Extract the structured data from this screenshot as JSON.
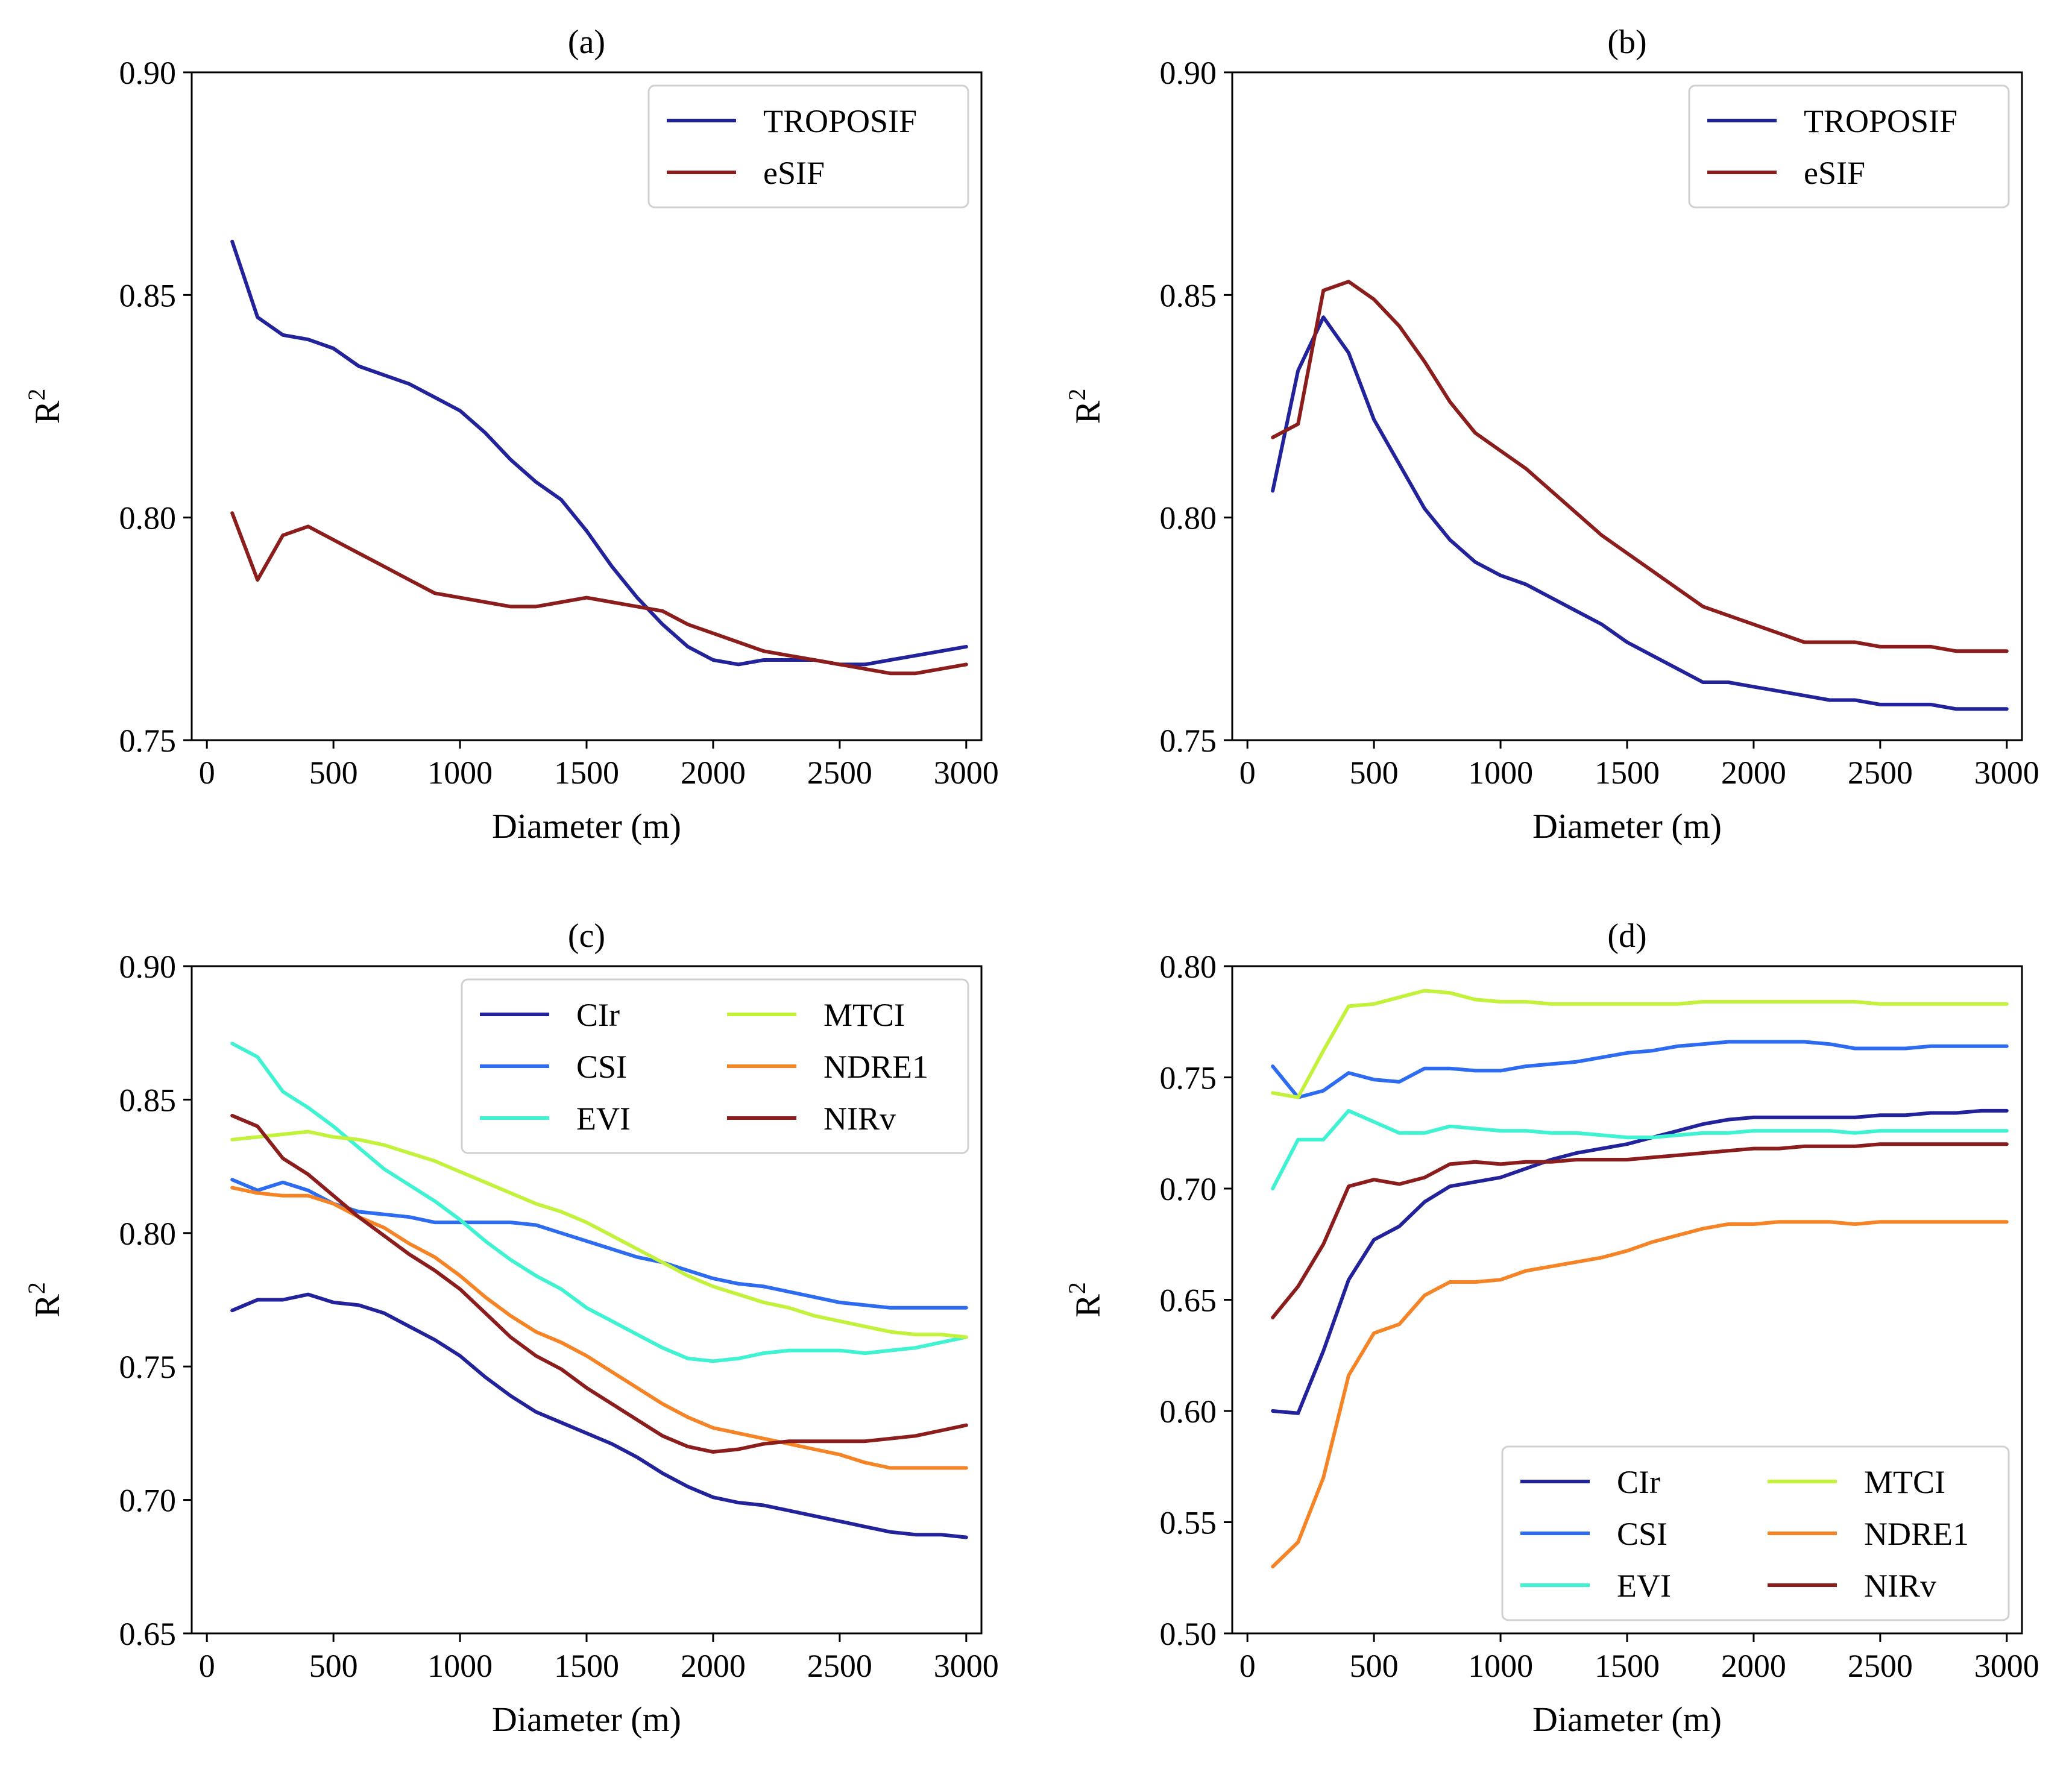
{
  "chart_data": [
    {
      "type": "line",
      "title": "(a)",
      "xlabel": "Diameter (m)",
      "ylabel": "R",
      "ylabel_sup": "2",
      "xlim": [
        -60,
        3060
      ],
      "ylim": [
        0.75,
        0.9
      ],
      "xticks": [
        0,
        500,
        1000,
        1500,
        2000,
        2500,
        3000
      ],
      "xtick_labels": [
        "0",
        "500",
        "1000",
        "1500",
        "2000",
        "2500",
        "3000"
      ],
      "yticks": [
        0.75,
        0.8,
        0.85,
        0.9
      ],
      "ytick_labels": [
        "0.75",
        "0.80",
        "0.85",
        "0.90"
      ],
      "legend": "top-right",
      "legend_cols": 1,
      "x": [
        100,
        200,
        300,
        400,
        500,
        600,
        700,
        800,
        900,
        1000,
        1100,
        1200,
        1300,
        1400,
        1500,
        1600,
        1700,
        1800,
        1900,
        2000,
        2100,
        2200,
        2300,
        2400,
        2500,
        2600,
        2700,
        2800,
        2900,
        3000
      ],
      "series": [
        {
          "name": "TROPOSIF",
          "color": "#22229a",
          "values": [
            0.862,
            0.845,
            0.841,
            0.84,
            0.838,
            0.834,
            0.832,
            0.83,
            0.827,
            0.824,
            0.819,
            0.813,
            0.808,
            0.804,
            0.797,
            0.789,
            0.782,
            0.776,
            0.771,
            0.768,
            0.767,
            0.768,
            0.768,
            0.768,
            0.767,
            0.767,
            0.768,
            0.769,
            0.77,
            0.771
          ]
        },
        {
          "name": "eSIF",
          "color": "#8b1d1d",
          "values": [
            0.801,
            0.786,
            0.796,
            0.798,
            0.795,
            0.792,
            0.789,
            0.786,
            0.783,
            0.782,
            0.781,
            0.78,
            0.78,
            0.781,
            0.782,
            0.781,
            0.78,
            0.779,
            0.776,
            0.774,
            0.772,
            0.77,
            0.769,
            0.768,
            0.767,
            0.766,
            0.765,
            0.765,
            0.766,
            0.767
          ]
        }
      ]
    },
    {
      "type": "line",
      "title": "(b)",
      "xlabel": "Diameter (m)",
      "ylabel": "R",
      "ylabel_sup": "2",
      "xlim": [
        -60,
        3060
      ],
      "ylim": [
        0.75,
        0.9
      ],
      "xticks": [
        0,
        500,
        1000,
        1500,
        2000,
        2500,
        3000
      ],
      "xtick_labels": [
        "0",
        "500",
        "1000",
        "1500",
        "2000",
        "2500",
        "3000"
      ],
      "yticks": [
        0.75,
        0.8,
        0.85,
        0.9
      ],
      "ytick_labels": [
        "0.75",
        "0.80",
        "0.85",
        "0.90"
      ],
      "legend": "top-right",
      "legend_cols": 1,
      "x": [
        100,
        200,
        300,
        400,
        500,
        600,
        700,
        800,
        900,
        1000,
        1100,
        1200,
        1300,
        1400,
        1500,
        1600,
        1700,
        1800,
        1900,
        2000,
        2100,
        2200,
        2300,
        2400,
        2500,
        2600,
        2700,
        2800,
        2900,
        3000
      ],
      "series": [
        {
          "name": "TROPOSIF",
          "color": "#22229a",
          "values": [
            0.806,
            0.833,
            0.845,
            0.837,
            0.822,
            0.812,
            0.802,
            0.795,
            0.79,
            0.787,
            0.785,
            0.782,
            0.779,
            0.776,
            0.772,
            0.769,
            0.766,
            0.763,
            0.763,
            0.762,
            0.761,
            0.76,
            0.759,
            0.759,
            0.758,
            0.758,
            0.758,
            0.757,
            0.757,
            0.757
          ]
        },
        {
          "name": "eSIF",
          "color": "#8b1d1d",
          "values": [
            0.818,
            0.821,
            0.851,
            0.853,
            0.849,
            0.843,
            0.835,
            0.826,
            0.819,
            0.815,
            0.811,
            0.806,
            0.801,
            0.796,
            0.792,
            0.788,
            0.784,
            0.78,
            0.778,
            0.776,
            0.774,
            0.772,
            0.772,
            0.772,
            0.771,
            0.771,
            0.771,
            0.77,
            0.77,
            0.77
          ]
        }
      ]
    },
    {
      "type": "line",
      "title": "(c)",
      "xlabel": "Diameter (m)",
      "ylabel": "R",
      "ylabel_sup": "2",
      "xlim": [
        -60,
        3060
      ],
      "ylim": [
        0.65,
        0.9
      ],
      "xticks": [
        0,
        500,
        1000,
        1500,
        2000,
        2500,
        3000
      ],
      "xtick_labels": [
        "0",
        "500",
        "1000",
        "1500",
        "2000",
        "2500",
        "3000"
      ],
      "yticks": [
        0.65,
        0.7,
        0.75,
        0.8,
        0.85,
        0.9
      ],
      "ytick_labels": [
        "0.65",
        "0.70",
        "0.75",
        "0.80",
        "0.85",
        "0.90"
      ],
      "legend": "top-right",
      "legend_cols": 2,
      "x": [
        100,
        200,
        300,
        400,
        500,
        600,
        700,
        800,
        900,
        1000,
        1100,
        1200,
        1300,
        1400,
        1500,
        1600,
        1700,
        1800,
        1900,
        2000,
        2100,
        2200,
        2300,
        2400,
        2500,
        2600,
        2700,
        2800,
        2900,
        3000
      ],
      "series": [
        {
          "name": "CIr",
          "color": "#22229a",
          "values": [
            0.771,
            0.775,
            0.775,
            0.777,
            0.774,
            0.773,
            0.77,
            0.765,
            0.76,
            0.754,
            0.746,
            0.739,
            0.733,
            0.729,
            0.725,
            0.721,
            0.716,
            0.71,
            0.705,
            0.701,
            0.699,
            0.698,
            0.696,
            0.694,
            0.692,
            0.69,
            0.688,
            0.687,
            0.687,
            0.686
          ]
        },
        {
          "name": "CSI",
          "color": "#2d6cf0",
          "values": [
            0.82,
            0.816,
            0.819,
            0.816,
            0.811,
            0.808,
            0.807,
            0.806,
            0.804,
            0.804,
            0.804,
            0.804,
            0.803,
            0.8,
            0.797,
            0.794,
            0.791,
            0.789,
            0.786,
            0.783,
            0.781,
            0.78,
            0.778,
            0.776,
            0.774,
            0.773,
            0.772,
            0.772,
            0.772,
            0.772
          ]
        },
        {
          "name": "EVI",
          "color": "#3ff2d2",
          "values": [
            0.871,
            0.866,
            0.853,
            0.847,
            0.84,
            0.832,
            0.824,
            0.818,
            0.812,
            0.805,
            0.797,
            0.79,
            0.784,
            0.779,
            0.772,
            0.767,
            0.762,
            0.757,
            0.753,
            0.752,
            0.753,
            0.755,
            0.756,
            0.756,
            0.756,
            0.755,
            0.756,
            0.757,
            0.759,
            0.761
          ]
        },
        {
          "name": "MTCI",
          "color": "#c3f23c",
          "values": [
            0.835,
            0.836,
            0.837,
            0.838,
            0.836,
            0.835,
            0.833,
            0.83,
            0.827,
            0.823,
            0.819,
            0.815,
            0.811,
            0.808,
            0.804,
            0.799,
            0.794,
            0.789,
            0.784,
            0.78,
            0.777,
            0.774,
            0.772,
            0.769,
            0.767,
            0.765,
            0.763,
            0.762,
            0.762,
            0.761
          ]
        },
        {
          "name": "NDRE1",
          "color": "#f58426",
          "values": [
            0.817,
            0.815,
            0.814,
            0.814,
            0.811,
            0.806,
            0.802,
            0.796,
            0.791,
            0.784,
            0.776,
            0.769,
            0.763,
            0.759,
            0.754,
            0.748,
            0.742,
            0.736,
            0.731,
            0.727,
            0.725,
            0.723,
            0.721,
            0.719,
            0.717,
            0.714,
            0.712,
            0.712,
            0.712,
            0.712
          ]
        },
        {
          "name": "NIRv",
          "color": "#8b1d1d",
          "values": [
            0.844,
            0.84,
            0.828,
            0.822,
            0.814,
            0.806,
            0.799,
            0.792,
            0.786,
            0.779,
            0.77,
            0.761,
            0.754,
            0.749,
            0.742,
            0.736,
            0.73,
            0.724,
            0.72,
            0.718,
            0.719,
            0.721,
            0.722,
            0.722,
            0.722,
            0.722,
            0.723,
            0.724,
            0.726,
            0.728
          ]
        }
      ]
    },
    {
      "type": "line",
      "title": "(d)",
      "xlabel": "Diameter (m)",
      "ylabel": "R",
      "ylabel_sup": "2",
      "xlim": [
        -60,
        3060
      ],
      "ylim": [
        0.5,
        0.8
      ],
      "xticks": [
        0,
        500,
        1000,
        1500,
        2000,
        2500,
        3000
      ],
      "xtick_labels": [
        "0",
        "500",
        "1000",
        "1500",
        "2000",
        "2500",
        "3000"
      ],
      "yticks": [
        0.5,
        0.55,
        0.6,
        0.65,
        0.7,
        0.75,
        0.8
      ],
      "ytick_labels": [
        "0.50",
        "0.55",
        "0.60",
        "0.65",
        "0.70",
        "0.75",
        "0.80"
      ],
      "legend": "lower-right",
      "legend_cols": 2,
      "x": [
        100,
        200,
        300,
        400,
        500,
        600,
        700,
        800,
        900,
        1000,
        1100,
        1200,
        1300,
        1400,
        1500,
        1600,
        1700,
        1800,
        1900,
        2000,
        2100,
        2200,
        2300,
        2400,
        2500,
        2600,
        2700,
        2800,
        2900,
        3000
      ],
      "series": [
        {
          "name": "CIr",
          "color": "#22229a",
          "values": [
            0.6,
            0.599,
            0.627,
            0.659,
            0.677,
            0.683,
            0.694,
            0.701,
            0.703,
            0.705,
            0.709,
            0.713,
            0.716,
            0.718,
            0.72,
            0.723,
            0.726,
            0.729,
            0.731,
            0.732,
            0.732,
            0.732,
            0.732,
            0.732,
            0.733,
            0.733,
            0.734,
            0.734,
            0.735,
            0.735
          ]
        },
        {
          "name": "CSI",
          "color": "#2d6cf0",
          "values": [
            0.755,
            0.741,
            0.744,
            0.752,
            0.749,
            0.748,
            0.754,
            0.754,
            0.753,
            0.753,
            0.755,
            0.756,
            0.757,
            0.759,
            0.761,
            0.762,
            0.764,
            0.765,
            0.766,
            0.766,
            0.766,
            0.766,
            0.765,
            0.763,
            0.763,
            0.763,
            0.764,
            0.764,
            0.764,
            0.764
          ]
        },
        {
          "name": "EVI",
          "color": "#3ff2d2",
          "values": [
            0.7,
            0.722,
            0.722,
            0.735,
            0.73,
            0.725,
            0.725,
            0.728,
            0.727,
            0.726,
            0.726,
            0.725,
            0.725,
            0.724,
            0.723,
            0.723,
            0.724,
            0.725,
            0.725,
            0.726,
            0.726,
            0.726,
            0.726,
            0.725,
            0.726,
            0.726,
            0.726,
            0.726,
            0.726,
            0.726
          ]
        },
        {
          "name": "MTCI",
          "color": "#c3f23c",
          "values": [
            0.743,
            0.741,
            0.762,
            0.782,
            0.783,
            0.786,
            0.789,
            0.788,
            0.785,
            0.784,
            0.784,
            0.783,
            0.783,
            0.783,
            0.783,
            0.783,
            0.783,
            0.784,
            0.784,
            0.784,
            0.784,
            0.784,
            0.784,
            0.784,
            0.783,
            0.783,
            0.783,
            0.783,
            0.783,
            0.783
          ]
        },
        {
          "name": "NDRE1",
          "color": "#f58426",
          "values": [
            0.53,
            0.541,
            0.57,
            0.616,
            0.635,
            0.639,
            0.652,
            0.658,
            0.658,
            0.659,
            0.663,
            0.665,
            0.667,
            0.669,
            0.672,
            0.676,
            0.679,
            0.682,
            0.684,
            0.684,
            0.685,
            0.685,
            0.685,
            0.684,
            0.685,
            0.685,
            0.685,
            0.685,
            0.685,
            0.685
          ]
        },
        {
          "name": "NIRv",
          "color": "#8b1d1d",
          "values": [
            0.642,
            0.656,
            0.675,
            0.701,
            0.704,
            0.702,
            0.705,
            0.711,
            0.712,
            0.711,
            0.712,
            0.712,
            0.713,
            0.713,
            0.713,
            0.714,
            0.715,
            0.716,
            0.717,
            0.718,
            0.718,
            0.719,
            0.719,
            0.719,
            0.72,
            0.72,
            0.72,
            0.72,
            0.72,
            0.72
          ]
        }
      ]
    }
  ]
}
